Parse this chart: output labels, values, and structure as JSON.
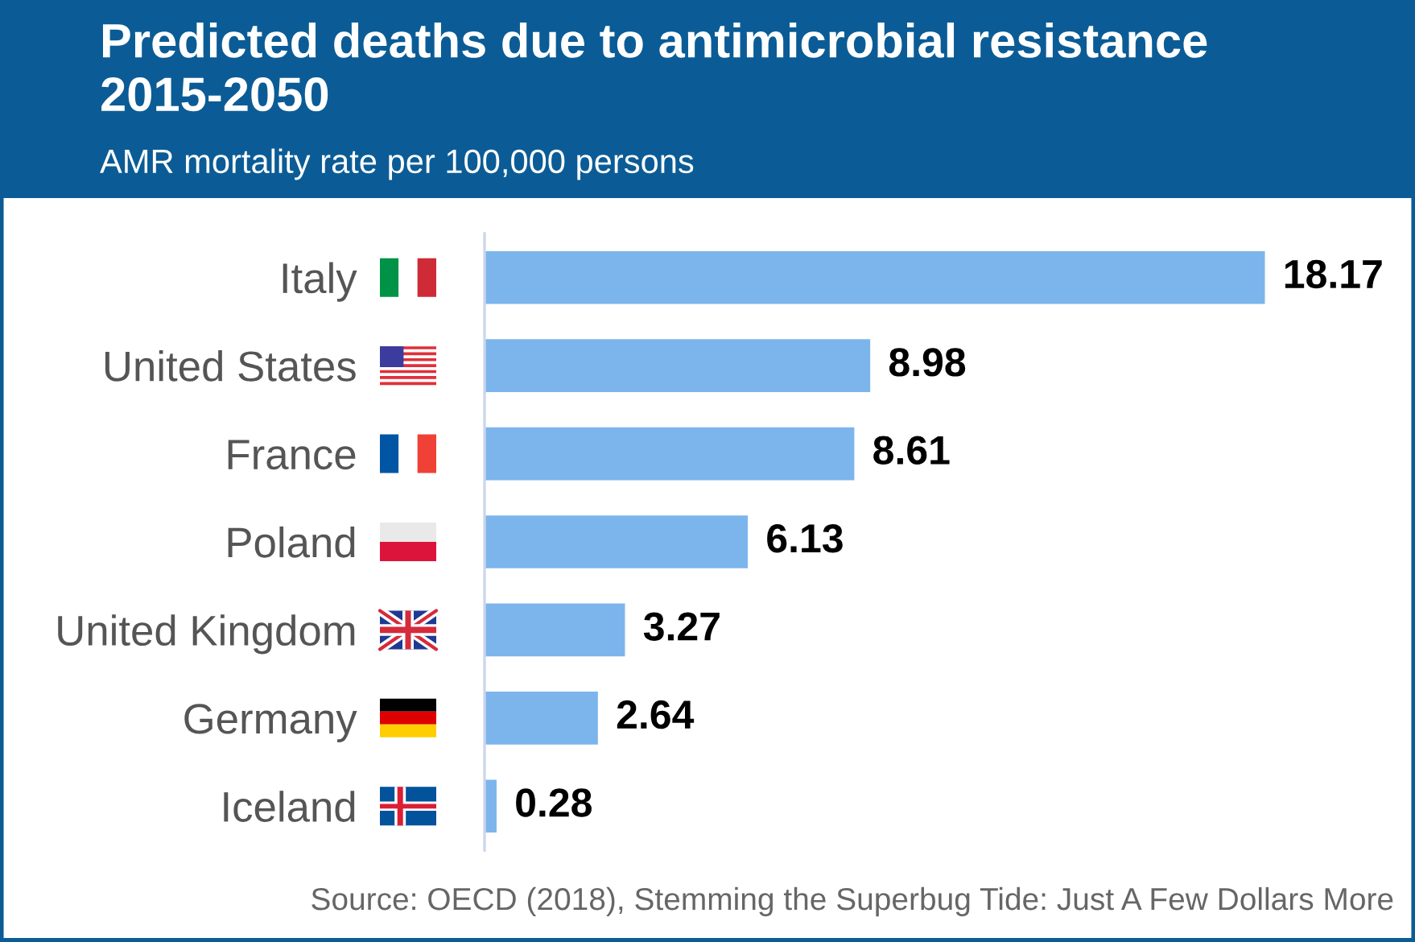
{
  "chart_data": {
    "type": "bar",
    "orientation": "horizontal",
    "title": "Predicted deaths due to antimicrobial resistance 2015-2050",
    "subtitle": "AMR mortality rate per 100,000 persons",
    "categories": [
      "Italy",
      "United States",
      "France",
      "Poland",
      "United Kingdom",
      "Germany",
      "Iceland"
    ],
    "values": [
      18.17,
      8.98,
      8.61,
      6.13,
      3.27,
      2.64,
      0.28
    ],
    "color": "#7cb5ec",
    "tick_labels": "y",
    "data_labels": true,
    "grid": false,
    "legend": false,
    "annotations": [
      "Source: OECD (2018), Stemming the Superbug Tide: Just A Few Dollars More"
    ]
  }
}
